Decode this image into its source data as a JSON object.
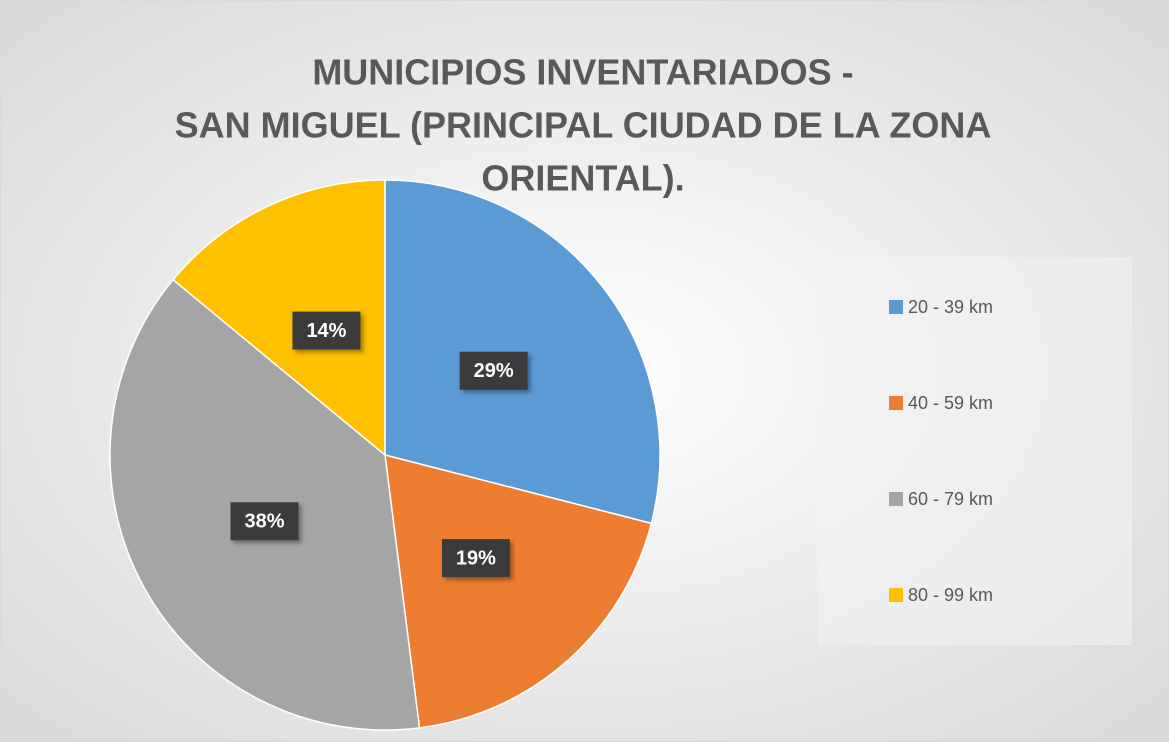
{
  "chart_data": {
    "type": "pie",
    "title": [
      "MUNICIPIOS INVENTARIADOS -",
      "SAN MIGUEL (PRINCIPAL CIUDAD DE LA ZONA",
      "ORIENTAL)."
    ],
    "categories": [
      "20 - 39 km",
      "40 - 59 km",
      "60 - 79 km",
      "80 - 99 km"
    ],
    "values": [
      29,
      19,
      38,
      14
    ],
    "value_labels": [
      "29%",
      "19%",
      "38%",
      "14%"
    ],
    "colors": [
      "#5b9bd5",
      "#ed7d31",
      "#a5a5a5",
      "#ffc000"
    ],
    "legend": "right"
  }
}
